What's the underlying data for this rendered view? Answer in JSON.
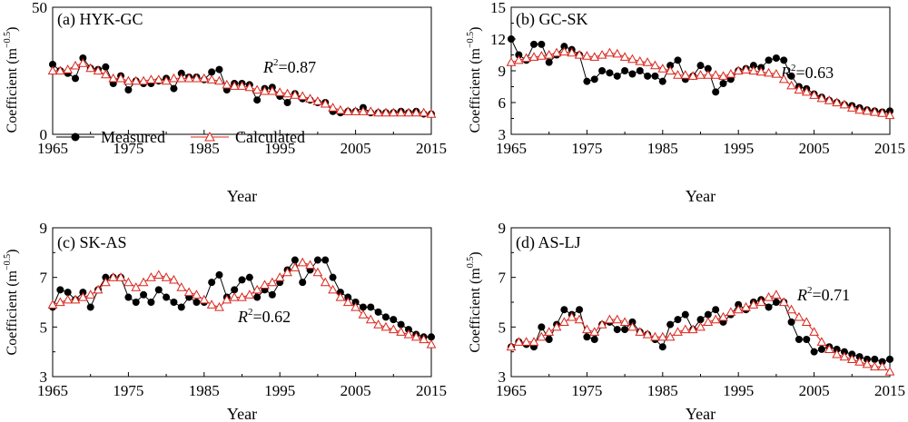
{
  "chart_data": [
    {
      "type": "line",
      "panel_label": "(a) HYK-GC",
      "xlabel": "Year",
      "ylabel": "Coefficient (m",
      "ylabel_sup": "−0.5",
      "ylabel_close": ")",
      "xlim": [
        1965,
        2015
      ],
      "ylim": [
        0,
        50
      ],
      "xticks": [
        1965,
        1975,
        1985,
        1995,
        2005,
        2015
      ],
      "yticks": [
        0,
        50
      ],
      "r2_prefix": "R",
      "r2_sup": "2",
      "r2_value": "=0.87",
      "legend": {
        "measured": "Measured",
        "calculated": "Calculated",
        "position": "lower-left"
      },
      "x": [
        1965,
        1966,
        1967,
        1968,
        1969,
        1970,
        1971,
        1972,
        1973,
        1974,
        1975,
        1976,
        1977,
        1978,
        1979,
        1980,
        1981,
        1982,
        1983,
        1984,
        1985,
        1986,
        1987,
        1988,
        1989,
        1990,
        1991,
        1992,
        1993,
        1994,
        1995,
        1996,
        1997,
        1998,
        1999,
        2000,
        2001,
        2002,
        2003,
        2004,
        2005,
        2006,
        2007,
        2008,
        2009,
        2010,
        2011,
        2012,
        2013,
        2014,
        2015
      ],
      "series": [
        {
          "name": "Measured",
          "values": [
            27.5,
            25,
            24,
            22,
            30,
            26,
            25.5,
            26.5,
            20,
            23,
            17.5,
            21,
            20,
            20,
            21,
            22,
            18,
            24,
            22.5,
            22.5,
            21.5,
            24.5,
            25.5,
            17.5,
            20,
            20,
            19.5,
            13.5,
            18,
            18.5,
            15,
            12.5,
            16,
            14,
            13.5,
            12.5,
            12.5,
            9,
            8.5,
            9,
            9,
            10.5,
            8.5,
            8.5,
            8.5,
            8.5,
            9,
            8.5,
            9,
            8,
            8
          ]
        },
        {
          "name": "Calculated",
          "values": [
            25,
            25,
            25.5,
            27,
            28,
            26,
            25,
            23.5,
            22,
            22,
            21,
            21,
            21,
            21.5,
            21.5,
            21,
            22,
            22,
            22,
            22,
            22,
            21.5,
            21,
            19.5,
            19,
            19,
            18.5,
            17.5,
            17,
            17,
            16.5,
            16,
            15.5,
            15,
            14,
            13,
            12,
            10.5,
            9.5,
            9,
            9,
            9,
            9,
            8.5,
            8.5,
            8.5,
            8.5,
            8.5,
            8.5,
            8.5,
            8
          ]
        }
      ]
    },
    {
      "type": "line",
      "panel_label": "(b) GC-SK",
      "xlabel": "Year",
      "ylabel": "Coefficient (m",
      "ylabel_sup": "−0.5",
      "ylabel_close": ")",
      "xlim": [
        1965,
        2015
      ],
      "ylim": [
        3,
        15
      ],
      "xticks": [
        1965,
        1975,
        1985,
        1995,
        2005,
        2015
      ],
      "yticks": [
        3,
        6,
        9,
        12,
        15
      ],
      "r2_prefix": "R",
      "r2_sup": "2",
      "r2_value": "=0.63",
      "x": [
        1965,
        1966,
        1967,
        1968,
        1969,
        1970,
        1971,
        1972,
        1973,
        1974,
        1975,
        1976,
        1977,
        1978,
        1979,
        1980,
        1981,
        1982,
        1983,
        1984,
        1985,
        1986,
        1987,
        1988,
        1989,
        1990,
        1991,
        1992,
        1993,
        1994,
        1995,
        1996,
        1997,
        1998,
        1999,
        2000,
        2001,
        2002,
        2003,
        2004,
        2005,
        2006,
        2007,
        2008,
        2009,
        2010,
        2011,
        2012,
        2013,
        2014,
        2015
      ],
      "series": [
        {
          "name": "Measured",
          "values": [
            12,
            10.5,
            10,
            11.5,
            11.5,
            9.8,
            10.5,
            11.3,
            11,
            10.5,
            8,
            8.2,
            9,
            8.8,
            8.5,
            9,
            8.7,
            9,
            8.5,
            8.5,
            8,
            9.5,
            10,
            8.2,
            8.5,
            9.5,
            9.2,
            7,
            7.8,
            8.2,
            9,
            9.2,
            9.5,
            9.3,
            10,
            10.2,
            10,
            8.5,
            7.5,
            7.3,
            6.8,
            6.5,
            6.2,
            6,
            5.8,
            5.7,
            5.5,
            5.3,
            5.2,
            5.1,
            5.2
          ]
        },
        {
          "name": "Calculated",
          "values": [
            9.8,
            10,
            10.2,
            10.3,
            10.4,
            10.5,
            10.7,
            10.8,
            10.7,
            10.5,
            10.4,
            10.3,
            10.5,
            10.7,
            10.6,
            10.3,
            10.1,
            9.9,
            9.8,
            9.5,
            9.2,
            9,
            8.6,
            8.6,
            8.5,
            8.6,
            8.6,
            8.6,
            8.5,
            8.7,
            9,
            9.1,
            9,
            8.9,
            8.8,
            8.7,
            8.2,
            7.6,
            7.2,
            7,
            6.7,
            6.4,
            6.2,
            6,
            5.8,
            5.5,
            5.3,
            5.2,
            5.1,
            5,
            4.8
          ]
        }
      ]
    },
    {
      "type": "line",
      "panel_label": "(c) SK-AS",
      "xlabel": "Year",
      "ylabel": "Coefficient (m",
      "ylabel_sup": "−0.5",
      "ylabel_close": ")",
      "xlim": [
        1965,
        2015
      ],
      "ylim": [
        3,
        9
      ],
      "xticks": [
        1965,
        1975,
        1985,
        1995,
        2005,
        2015
      ],
      "yticks": [
        3,
        5,
        7,
        9
      ],
      "r2_prefix": "R",
      "r2_sup": "2",
      "r2_value": "=0.62",
      "x": [
        1965,
        1966,
        1967,
        1968,
        1969,
        1970,
        1971,
        1972,
        1973,
        1974,
        1975,
        1976,
        1977,
        1978,
        1979,
        1980,
        1981,
        1982,
        1983,
        1984,
        1985,
        1986,
        1987,
        1988,
        1989,
        1990,
        1991,
        1992,
        1993,
        1994,
        1995,
        1996,
        1997,
        1998,
        1999,
        2000,
        2001,
        2002,
        2003,
        2004,
        2005,
        2006,
        2007,
        2008,
        2009,
        2010,
        2011,
        2012,
        2013,
        2014,
        2015
      ],
      "series": [
        {
          "name": "Measured",
          "values": [
            5.8,
            6.5,
            6.4,
            6.1,
            6.4,
            5.8,
            6.5,
            7,
            7,
            7,
            6.2,
            6,
            6.3,
            6,
            6.5,
            6.2,
            6,
            5.8,
            6.2,
            6,
            6,
            6.8,
            7.1,
            6.2,
            6.5,
            6.9,
            7,
            6.2,
            6.5,
            6.3,
            6.8,
            7.3,
            7.7,
            6.8,
            7.3,
            7.7,
            7.7,
            7,
            6.4,
            6.2,
            6,
            5.8,
            5.8,
            5.6,
            5.4,
            5.3,
            5.1,
            4.9,
            4.7,
            4.6,
            4.6
          ]
        },
        {
          "name": "Calculated",
          "values": [
            5.9,
            6,
            6.1,
            6.1,
            6.2,
            6.3,
            6.5,
            6.8,
            7,
            7,
            6.8,
            6.6,
            6.8,
            7,
            7.1,
            7,
            6.9,
            6.6,
            6.4,
            6.3,
            6.1,
            5.9,
            5.8,
            6.1,
            6.2,
            6.2,
            6.3,
            6.5,
            6.7,
            6.8,
            7,
            7.2,
            7.4,
            7.6,
            7.5,
            7.2,
            6.8,
            6.5,
            6.2,
            6,
            5.8,
            5.5,
            5.3,
            5.1,
            5,
            4.9,
            4.8,
            4.7,
            4.6,
            4.5,
            4.3
          ]
        }
      ]
    },
    {
      "type": "line",
      "panel_label": "(d) AS-LJ",
      "xlabel": "Year",
      "ylabel": "Coefficient (m",
      "ylabel_sup": "0.5",
      "ylabel_close": ")",
      "xlim": [
        1965,
        2015
      ],
      "ylim": [
        3,
        9
      ],
      "xticks": [
        1965,
        1975,
        1985,
        1995,
        2005,
        2015
      ],
      "yticks": [
        3,
        5,
        7,
        9
      ],
      "r2_prefix": "R",
      "r2_sup": "2",
      "r2_value": "=0.71",
      "x": [
        1965,
        1966,
        1967,
        1968,
        1969,
        1970,
        1971,
        1972,
        1973,
        1974,
        1975,
        1976,
        1977,
        1978,
        1979,
        1980,
        1981,
        1982,
        1983,
        1984,
        1985,
        1986,
        1987,
        1988,
        1989,
        1990,
        1991,
        1992,
        1993,
        1994,
        1995,
        1996,
        1997,
        1998,
        1999,
        2000,
        2001,
        2002,
        2003,
        2004,
        2005,
        2006,
        2007,
        2008,
        2009,
        2010,
        2011,
        2012,
        2013,
        2014,
        2015
      ],
      "series": [
        {
          "name": "Measured",
          "values": [
            4.2,
            4.4,
            4.3,
            4.2,
            5,
            4.5,
            5.1,
            5.7,
            5.5,
            5.7,
            4.6,
            4.5,
            5.1,
            5.2,
            4.9,
            4.9,
            5.2,
            4.8,
            4.7,
            4.5,
            4.2,
            5.1,
            5.3,
            5.5,
            4.9,
            5.3,
            5.5,
            5.7,
            5.2,
            5.5,
            5.9,
            5.7,
            6,
            6.1,
            5.8,
            6,
            6,
            5.2,
            4.5,
            4.5,
            4,
            4.1,
            4.2,
            4.1,
            4,
            3.9,
            3.8,
            3.7,
            3.7,
            3.6,
            3.7
          ]
        },
        {
          "name": "Calculated",
          "values": [
            4.2,
            4.4,
            4.4,
            4.4,
            4.6,
            4.8,
            5,
            5.2,
            5.4,
            5.3,
            4.9,
            4.8,
            5.1,
            5.3,
            5.3,
            5.2,
            5,
            4.8,
            4.7,
            4.6,
            4.6,
            4.6,
            4.8,
            4.9,
            4.9,
            5,
            5.2,
            5.3,
            5.4,
            5.6,
            5.7,
            5.8,
            5.9,
            6,
            6.2,
            6.3,
            6,
            5.7,
            5.4,
            5.2,
            4.8,
            4.4,
            4.1,
            3.9,
            3.8,
            3.7,
            3.6,
            3.5,
            3.4,
            3.4,
            3.2
          ]
        }
      ]
    }
  ],
  "colors": {
    "measured": "#000000",
    "calculated": "#d9261c",
    "axis": "#000000"
  }
}
